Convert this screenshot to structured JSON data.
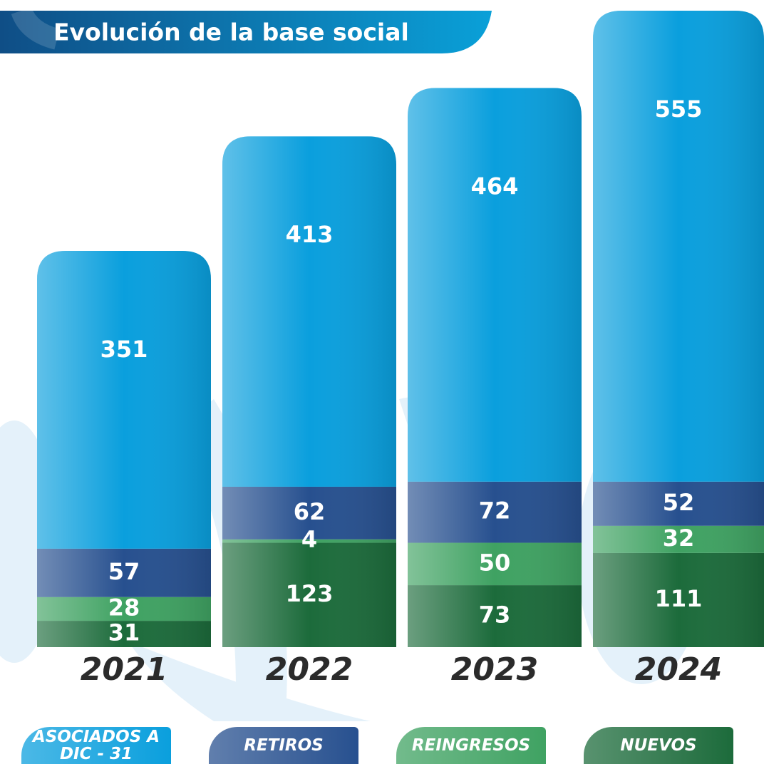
{
  "chart_data": {
    "type": "stacked-bar",
    "title": "Evolución de la base social",
    "categories": [
      "2021",
      "2022",
      "2023",
      "2024"
    ],
    "series": [
      {
        "name": "ASOCIADOS A DIC - 31",
        "color": "#0a9fdd",
        "values": [
          351,
          413,
          464,
          555
        ]
      },
      {
        "name": "RETIROS",
        "color": "#27508f",
        "values": [
          57,
          62,
          72,
          52
        ]
      },
      {
        "name": "REINGRESOS",
        "color": "#3fa262",
        "values": [
          28,
          4,
          50,
          32
        ]
      },
      {
        "name": "NUEVOS",
        "color": "#1c6b3b",
        "values": [
          31,
          123,
          73,
          111
        ]
      }
    ]
  }
}
